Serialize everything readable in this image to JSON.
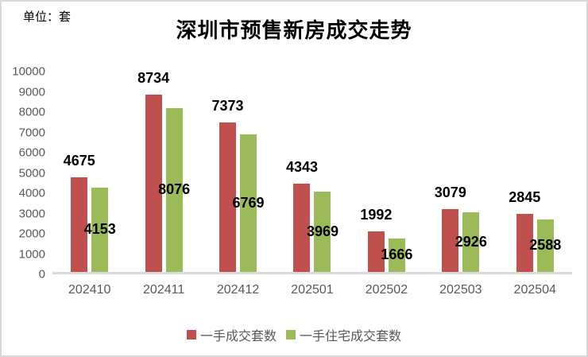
{
  "unit_label": "单位：套",
  "title": "深圳市预售新房成交走势",
  "chart_data": {
    "type": "bar",
    "title": "深圳市预售新房成交走势",
    "unit": "套",
    "categories": [
      "202410",
      "202411",
      "202412",
      "202501",
      "202502",
      "202503",
      "202504"
    ],
    "series": [
      {
        "name": "一手成交套数",
        "color": "#C0504D",
        "values": [
          4675,
          8734,
          7373,
          4343,
          1992,
          3079,
          2845
        ],
        "label_position": "outside-end"
      },
      {
        "name": "一手住宅成交套数",
        "color": "#9BBB59",
        "values": [
          4153,
          8076,
          6769,
          3969,
          1666,
          2926,
          2588
        ],
        "label_position": "inside-center"
      }
    ],
    "xlabel": "",
    "ylabel": "单位：套",
    "ylim": [
      0,
      10000
    ],
    "ytick_step": 1000,
    "grid": false,
    "legend_position": "bottom",
    "data_labels": true
  },
  "colors": {
    "series1": "#C0504D",
    "series2": "#9BBB59",
    "axis_text": "#595959",
    "axis_line": "#D9D9D9",
    "frame_border": "#D9D9D9",
    "background": "#FFFFFF",
    "label_text": "#000000"
  }
}
